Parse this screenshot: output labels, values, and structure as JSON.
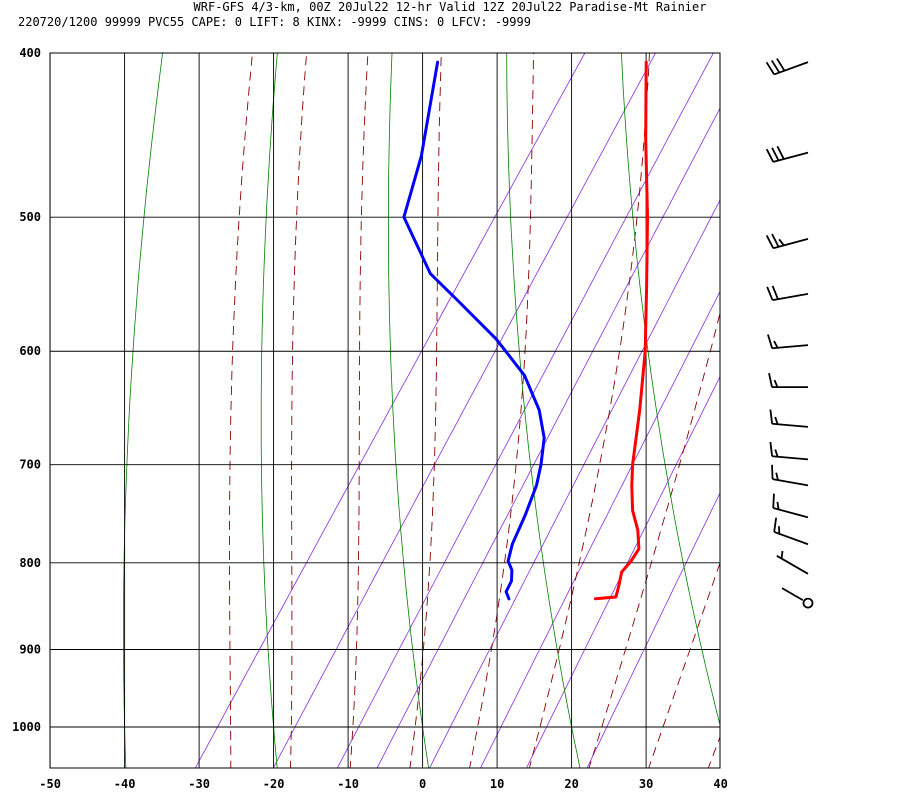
{
  "header": {
    "line1": "WRF-GFS 4/3-km, 00Z 20Jul22 12-hr Valid 12Z 20Jul22 Paradise-Mt Rainier",
    "line2": "220720/1200 99999  PVC55   CAPE:     0 LIFT:     8 KINX: -9999 CINS:     0 LFCV: -9999"
  },
  "chart_data": {
    "type": "line",
    "title": "WRF-GFS 4/3-km, 00Z 20Jul22 12-hr Valid 12Z 20Jul22 Paradise-Mt Rainier",
    "xlabel": "",
    "ylabel": "",
    "x_unit": "deg C",
    "y_unit": "hPa",
    "xlim": [
      -50,
      40
    ],
    "ylim": [
      1045,
      400
    ],
    "y_scale": "log",
    "x_ticks": [
      -50,
      -40,
      -30,
      -20,
      -10,
      0,
      10,
      20,
      30,
      40
    ],
    "y_ticks": [
      400,
      500,
      600,
      700,
      800,
      900,
      1000
    ],
    "grid": true,
    "skew": true,
    "colors": {
      "temperature": "#ff0000",
      "dewpoint": "#0000ff",
      "dry_adiabats": "#008000",
      "moist_adiabats": "#8b0000",
      "mixing_ratio": "#8a2be2",
      "grid": "#000000"
    },
    "series": [
      {
        "role": "temperature",
        "color": "#ff0000",
        "points": [
          {
            "p": 840,
            "t": 12.0
          },
          {
            "p": 838,
            "t": 14.6
          },
          {
            "p": 825,
            "t": 14.0
          },
          {
            "p": 810,
            "t": 13.2
          },
          {
            "p": 798,
            "t": 13.5
          },
          {
            "p": 785,
            "t": 13.5
          },
          {
            "p": 765,
            "t": 11.7
          },
          {
            "p": 745,
            "t": 9.3
          },
          {
            "p": 720,
            "t": 7.0
          },
          {
            "p": 700,
            "t": 5.3
          },
          {
            "p": 650,
            "t": 1.5
          },
          {
            "p": 600,
            "t": -2.9
          },
          {
            "p": 550,
            "t": -8.3
          },
          {
            "p": 500,
            "t": -14.3
          },
          {
            "p": 450,
            "t": -21.3
          },
          {
            "p": 405,
            "t": -28.0
          }
        ]
      },
      {
        "role": "dewpoint",
        "color": "#0000ff",
        "points": [
          {
            "p": 840,
            "t": 0.4
          },
          {
            "p": 832,
            "t": -0.6
          },
          {
            "p": 820,
            "t": -0.8
          },
          {
            "p": 808,
            "t": -1.7
          },
          {
            "p": 798,
            "t": -3.0
          },
          {
            "p": 780,
            "t": -3.9
          },
          {
            "p": 750,
            "t": -4.7
          },
          {
            "p": 720,
            "t": -5.8
          },
          {
            "p": 700,
            "t": -7.0
          },
          {
            "p": 675,
            "t": -8.9
          },
          {
            "p": 650,
            "t": -12.0
          },
          {
            "p": 620,
            "t": -17.0
          },
          {
            "p": 590,
            "t": -24.0
          },
          {
            "p": 560,
            "t": -32.5
          },
          {
            "p": 540,
            "t": -38.5
          },
          {
            "p": 500,
            "t": -47.0
          },
          {
            "p": 460,
            "t": -50.0
          },
          {
            "p": 405,
            "t": -56.0
          }
        ]
      }
    ],
    "wind_barbs": [
      {
        "p": 405,
        "dir_deg": 250,
        "speed_kt": 30
      },
      {
        "p": 458,
        "dir_deg": 255,
        "speed_kt": 30
      },
      {
        "p": 515,
        "dir_deg": 255,
        "speed_kt": 25
      },
      {
        "p": 555,
        "dir_deg": 260,
        "speed_kt": 20
      },
      {
        "p": 595,
        "dir_deg": 265,
        "speed_kt": 15
      },
      {
        "p": 630,
        "dir_deg": 270,
        "speed_kt": 15
      },
      {
        "p": 665,
        "dir_deg": 275,
        "speed_kt": 15
      },
      {
        "p": 695,
        "dir_deg": 275,
        "speed_kt": 15
      },
      {
        "p": 720,
        "dir_deg": 280,
        "speed_kt": 15
      },
      {
        "p": 752,
        "dir_deg": 285,
        "speed_kt": 15
      },
      {
        "p": 780,
        "dir_deg": 290,
        "speed_kt": 15
      },
      {
        "p": 812,
        "dir_deg": 300,
        "speed_kt": 5
      },
      {
        "p": 845,
        "dir_deg": 300,
        "speed_kt": 0
      }
    ]
  }
}
